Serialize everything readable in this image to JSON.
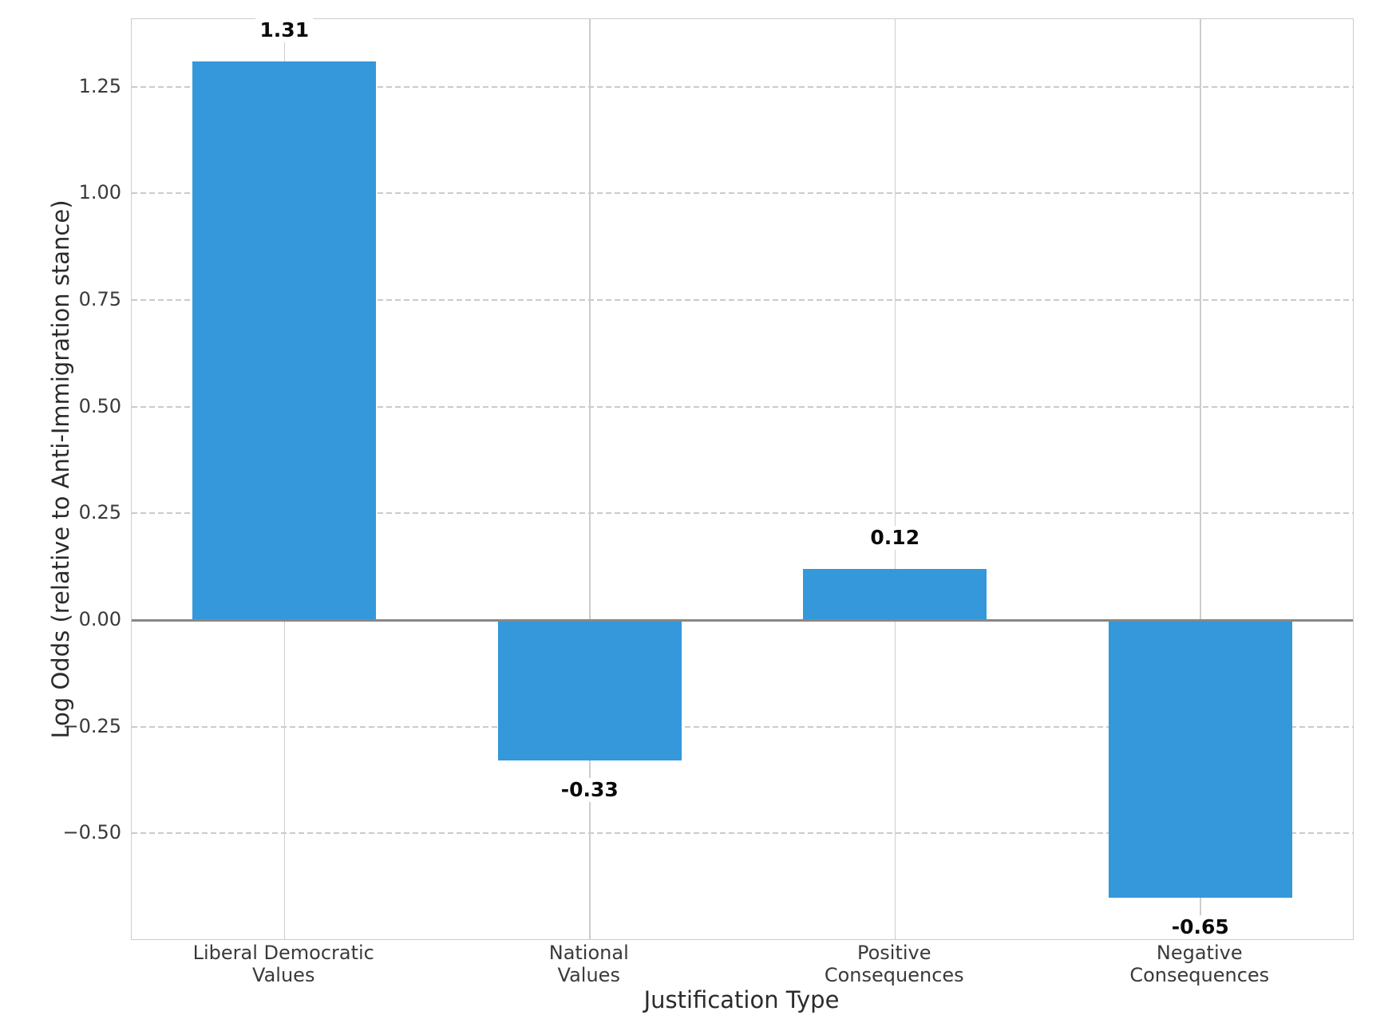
{
  "chart_data": {
    "type": "bar",
    "title": "",
    "xlabel": "Justification Type",
    "ylabel": "Log Odds (relative to Anti-Immigration stance)",
    "categories": [
      "Liberal Democratic\nValues",
      "National\nValues",
      "Positive\nConsequences",
      "Negative\nConsequences"
    ],
    "values": [
      1.31,
      -0.33,
      0.12,
      -0.65
    ],
    "bar_value_labels": [
      "1.31",
      "-0.33",
      "0.12",
      "-0.65"
    ],
    "yticks": [
      {
        "value": 1.25,
        "label": "1.25"
      },
      {
        "value": 1.0,
        "label": "1.00"
      },
      {
        "value": 0.75,
        "label": "0.75"
      },
      {
        "value": 0.5,
        "label": "0.50"
      },
      {
        "value": 0.25,
        "label": "0.25"
      },
      {
        "value": 0.0,
        "label": "0.00"
      },
      {
        "value": -0.25,
        "label": "−0.25"
      },
      {
        "value": -0.5,
        "label": "−0.50"
      }
    ],
    "ylim": [
      -0.75,
      1.41
    ],
    "baseline": 0,
    "legend": "none",
    "grid": {
      "horizontal": "dashed",
      "vertical": "solid"
    },
    "colors": {
      "bar": "#3498db",
      "grid": "#cdcdcd",
      "zero_line": "#878787",
      "spine": "#cccccc",
      "tick_text": "#3a3a3a",
      "axis_label_text": "#2b2b2b",
      "value_label_text": "#0a0a0a",
      "background": "#ffffff"
    }
  }
}
